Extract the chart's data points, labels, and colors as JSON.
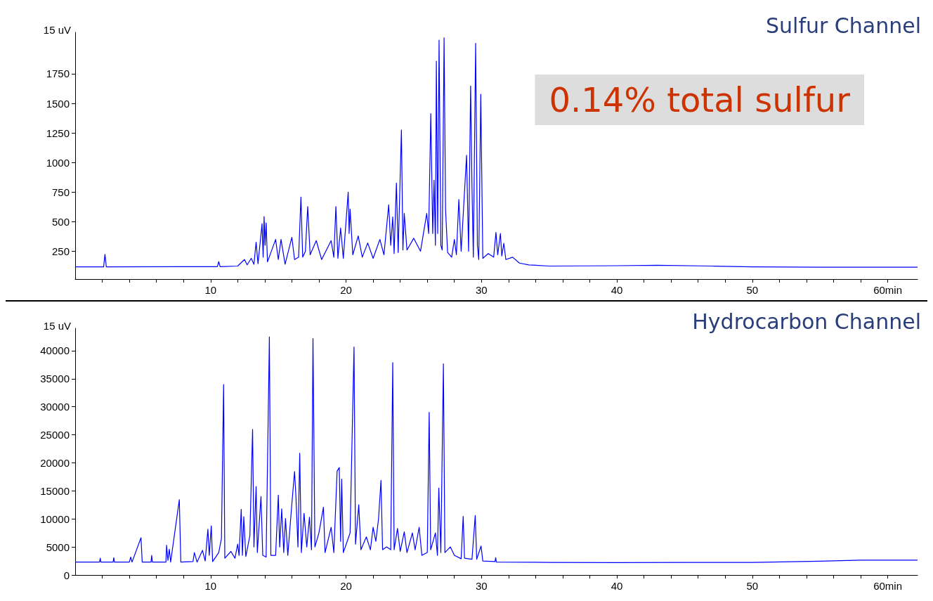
{
  "chart_data": [
    {
      "type": "line",
      "title": "Sulfur Channel",
      "ylabel": "15 uV",
      "annotations": [
        "0.14% total sulfur"
      ],
      "grid": false,
      "xlim": [
        0,
        62.2
      ],
      "xticks": [
        {
          "value": 2,
          "label": null
        },
        {
          "value": 4,
          "label": null
        },
        {
          "value": 6,
          "label": null
        },
        {
          "value": 8,
          "label": null
        },
        10,
        {
          "value": 12,
          "label": null
        },
        {
          "value": 14,
          "label": null
        },
        {
          "value": 16,
          "label": null
        },
        {
          "value": 18,
          "label": null
        },
        20,
        {
          "value": 22,
          "label": null
        },
        {
          "value": 24,
          "label": null
        },
        {
          "value": 26,
          "label": null
        },
        {
          "value": 28,
          "label": null
        },
        30,
        {
          "value": 32,
          "label": null
        },
        {
          "value": 34,
          "label": null
        },
        {
          "value": 36,
          "label": null
        },
        {
          "value": 38,
          "label": null
        },
        40,
        {
          "value": 42,
          "label": null
        },
        {
          "value": 44,
          "label": null
        },
        {
          "value": 46,
          "label": null
        },
        {
          "value": 48,
          "label": null
        },
        50,
        {
          "value": 52,
          "label": null
        },
        {
          "value": 54,
          "label": null
        },
        {
          "value": 56,
          "label": null
        },
        {
          "value": 58,
          "label": null
        },
        {
          "value": 60,
          "label": "60min"
        }
      ],
      "ylim": [
        15,
        2100
      ],
      "yticks": [
        250,
        500,
        750,
        1000,
        1250,
        1500,
        1750
      ],
      "series": [
        {
          "color": "#0000ff",
          "x": [
            0,
            2.1,
            2.2,
            2.3,
            10.5,
            10.6,
            10.7,
            12.0,
            12.5,
            12.7,
            13.0,
            13.2,
            13.36,
            13.5,
            13.8,
            13.88,
            13.95,
            14.02,
            14.1,
            14.2,
            14.8,
            15.0,
            15.2,
            15.5,
            16.0,
            16.2,
            16.5,
            16.67,
            16.8,
            17.0,
            17.17,
            17.35,
            17.8,
            18.2,
            18.9,
            19.1,
            19.25,
            19.4,
            19.6,
            19.8,
            20.16,
            20.23,
            20.3,
            20.5,
            20.9,
            21.2,
            21.6,
            22.0,
            22.5,
            22.8,
            23.15,
            23.3,
            23.45,
            23.55,
            23.72,
            23.85,
            24.09,
            24.2,
            24.3,
            24.5,
            25.0,
            25.5,
            25.96,
            26.1,
            26.26,
            26.4,
            26.5,
            26.6,
            26.67,
            26.77,
            26.87,
            27.0,
            27.1,
            27.24,
            27.35,
            27.5,
            27.8,
            28.0,
            28.15,
            28.33,
            28.5,
            28.9,
            29.05,
            29.2,
            29.3,
            29.4,
            29.57,
            29.7,
            29.8,
            29.95,
            30.1,
            30.5,
            30.9,
            31.07,
            31.2,
            31.4,
            31.5,
            31.65,
            31.8,
            32.3,
            32.8,
            33.5,
            35,
            40,
            43,
            47,
            50,
            55,
            62.2
          ],
          "values": [
            118,
            118,
            224,
            118,
            120,
            163,
            120,
            125,
            180,
            135,
            190,
            140,
            326,
            145,
            483,
            200,
            543,
            300,
            490,
            160,
            350,
            180,
            350,
            140,
            368,
            180,
            200,
            708,
            200,
            250,
            628,
            220,
            340,
            180,
            340,
            200,
            628,
            190,
            446,
            190,
            750,
            400,
            606,
            220,
            380,
            200,
            320,
            190,
            350,
            220,
            643,
            300,
            540,
            230,
            826,
            240,
            1275,
            260,
            570,
            260,
            360,
            250,
            570,
            400,
            1414,
            400,
            850,
            300,
            1856,
            400,
            2034,
            300,
            260,
            2053,
            600,
            240,
            200,
            350,
            220,
            687,
            250,
            1061,
            250,
            1647,
            800,
            200,
            2008,
            300,
            180,
            1577,
            190,
            230,
            200,
            409,
            220,
            400,
            210,
            318,
            180,
            200,
            150,
            135,
            125,
            128,
            132,
            125,
            118,
            115,
            115
          ]
        }
      ]
    },
    {
      "type": "line",
      "title": "Hydrocarbon Channel",
      "ylabel": "15 uV",
      "grid": false,
      "xlim": [
        0,
        62.2
      ],
      "xticks": [
        {
          "value": 2,
          "label": null
        },
        {
          "value": 4,
          "label": null
        },
        {
          "value": 6,
          "label": null
        },
        {
          "value": 8,
          "label": null
        },
        10,
        {
          "value": 12,
          "label": null
        },
        {
          "value": 14,
          "label": null
        },
        {
          "value": 16,
          "label": null
        },
        {
          "value": 18,
          "label": null
        },
        20,
        {
          "value": 22,
          "label": null
        },
        {
          "value": 24,
          "label": null
        },
        {
          "value": 26,
          "label": null
        },
        {
          "value": 28,
          "label": null
        },
        30,
        {
          "value": 32,
          "label": null
        },
        {
          "value": 34,
          "label": null
        },
        {
          "value": 36,
          "label": null
        },
        {
          "value": 38,
          "label": null
        },
        40,
        {
          "value": 42,
          "label": null
        },
        {
          "value": 44,
          "label": null
        },
        {
          "value": 46,
          "label": null
        },
        {
          "value": 48,
          "label": null
        },
        50,
        {
          "value": 52,
          "label": null
        },
        {
          "value": 54,
          "label": null
        },
        {
          "value": 56,
          "label": null
        },
        {
          "value": 58,
          "label": null
        },
        {
          "value": 60,
          "label": "60min"
        }
      ],
      "ylim": [
        0,
        44000
      ],
      "yticks": [
        0,
        5000,
        10000,
        15000,
        20000,
        25000,
        30000,
        35000,
        40000
      ],
      "series": [
        {
          "color": "#0000ff",
          "x": [
            0,
            1.8,
            1.85,
            1.9,
            2.8,
            2.85,
            2.9,
            4.0,
            4.1,
            4.2,
            4.86,
            4.95,
            5.6,
            5.65,
            5.7,
            6.7,
            6.75,
            6.85,
            6.95,
            7.05,
            7.69,
            7.8,
            8.7,
            8.8,
            9.0,
            9.4,
            9.6,
            9.8,
            9.9,
            10.05,
            10.15,
            10.6,
            10.8,
            10.96,
            11.05,
            11.5,
            11.8,
            12.0,
            12.1,
            12.26,
            12.35,
            12.45,
            12.6,
            12.9,
            13.1,
            13.2,
            13.36,
            13.45,
            13.72,
            13.85,
            14.1,
            14.34,
            14.45,
            14.8,
            15.0,
            15.1,
            15.25,
            15.4,
            15.53,
            15.7,
            16.0,
            16.2,
            16.3,
            16.45,
            16.58,
            16.7,
            16.9,
            17.1,
            17.3,
            17.45,
            17.56,
            17.7,
            18.0,
            18.33,
            18.45,
            18.9,
            19.1,
            19.34,
            19.5,
            19.6,
            19.68,
            19.8,
            20.3,
            20.59,
            20.7,
            20.94,
            21.1,
            21.5,
            21.8,
            22.0,
            22.2,
            22.4,
            22.58,
            22.7,
            23.0,
            23.3,
            23.45,
            23.55,
            23.8,
            24.0,
            24.3,
            24.5,
            24.9,
            25.1,
            25.4,
            25.6,
            26.0,
            26.14,
            26.25,
            26.6,
            26.75,
            26.85,
            27.0,
            27.19,
            27.3,
            27.7,
            28.0,
            28.5,
            28.65,
            28.75,
            29.3,
            29.54,
            29.65,
            29.97,
            30.1,
            31.0,
            31.05,
            31.1,
            35,
            40,
            45,
            50,
            55,
            58,
            62.2
          ],
          "values": [
            2300,
            2300,
            3000,
            2300,
            2300,
            3100,
            2300,
            2300,
            3200,
            2300,
            6640,
            2300,
            2300,
            3500,
            2300,
            2300,
            5300,
            2600,
            4600,
            2300,
            13440,
            2300,
            2400,
            4000,
            2300,
            4400,
            2500,
            8160,
            3500,
            8760,
            2400,
            4000,
            6500,
            33960,
            3000,
            4200,
            3000,
            5500,
            3500,
            11700,
            3500,
            10400,
            3300,
            7000,
            25960,
            5000,
            15780,
            4000,
            13990,
            3500,
            3200,
            42450,
            3500,
            3500,
            14260,
            5000,
            11800,
            4000,
            10070,
            3500,
            12700,
            18450,
            14000,
            5000,
            21710,
            4000,
            11000,
            5000,
            10300,
            4500,
            42180,
            5000,
            7500,
            12080,
            4000,
            8500,
            4000,
            18500,
            19160,
            6000,
            17090,
            4000,
            7500,
            40650,
            5500,
            12520,
            4500,
            6800,
            4500,
            8500,
            6000,
            10000,
            16870,
            4500,
            5000,
            4500,
            37880,
            4500,
            8300,
            4200,
            7700,
            4000,
            7500,
            4500,
            8500,
            3500,
            4000,
            29010,
            4500,
            7500,
            3500,
            15510,
            4000,
            37660,
            4000,
            5000,
            3500,
            2900,
            10450,
            3000,
            2800,
            10610,
            2800,
            5170,
            2500,
            2400,
            3100,
            2300,
            2250,
            2200,
            2250,
            2250,
            2450,
            2650,
            2650
          ]
        }
      ]
    }
  ]
}
